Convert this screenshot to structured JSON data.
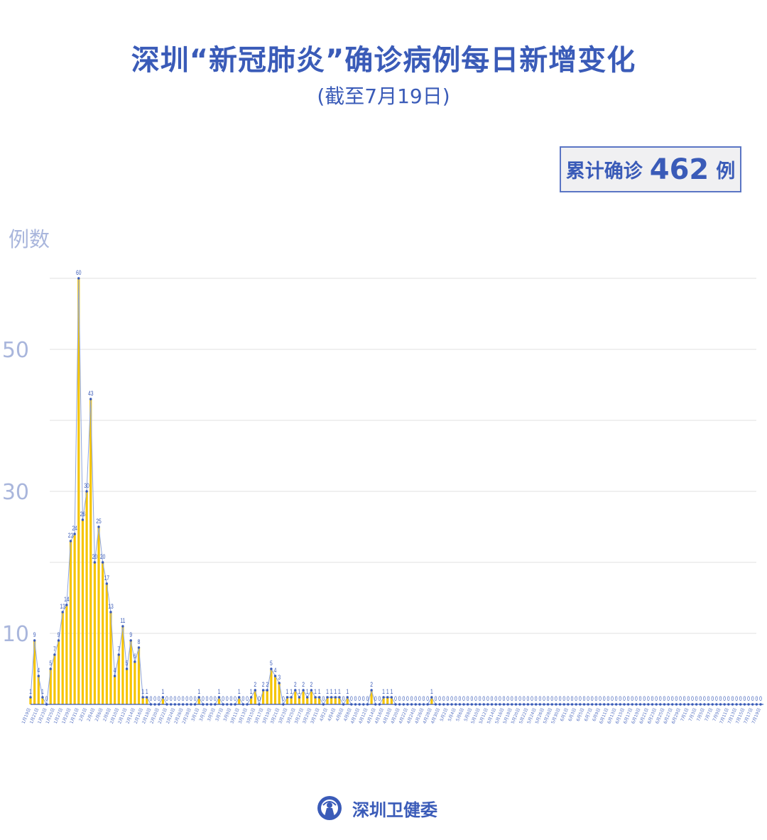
{
  "header": {
    "title": "深圳“新冠肺炎”确诊病例每日新增变化",
    "subtitle": "(截至7月19日)"
  },
  "summary": {
    "label": "累计确诊",
    "value": "462",
    "unit": "例"
  },
  "footer": {
    "org": "深圳卫健委",
    "logo_icon": "health-commission-seal"
  },
  "colors": {
    "bar": "#f5c400",
    "line": "#8fa5dc",
    "point": "#3a5bb8",
    "text": "#3a5bb8",
    "axis_text": "#a9b6dc",
    "grid": "#e2e2e2"
  },
  "chart_data": {
    "type": "bar+line",
    "ylabel": "例数",
    "ylim": [
      0,
      60
    ],
    "yticks_labeled": [
      10,
      30,
      50
    ],
    "grid": true,
    "data_labels": true,
    "categories": [
      "1月19日",
      "1月20日",
      "1月21日",
      "1月22日",
      "1月23日",
      "1月24日",
      "1月25日",
      "1月26日",
      "1月27日",
      "1月28日",
      "1月29日",
      "1月30日",
      "1月31日",
      "2月1日",
      "2月2日",
      "2月3日",
      "2月4日",
      "2月5日",
      "2月6日",
      "2月7日",
      "2月8日",
      "2月9日",
      "2月10日",
      "2月11日",
      "2月12日",
      "2月13日",
      "2月14日",
      "2月15日",
      "2月16日",
      "2月17日",
      "2月18日",
      "2月19日",
      "2月20日",
      "2月21日",
      "2月22日",
      "2月23日",
      "2月24日",
      "2月25日",
      "2月26日",
      "2月27日",
      "2月28日",
      "2月29日",
      "3月1日",
      "3月2日",
      "3月3日",
      "3月4日",
      "3月5日",
      "3月6日",
      "3月7日",
      "3月8日",
      "3月9日",
      "3月10日",
      "3月11日",
      "3月12日",
      "3月13日",
      "3月14日",
      "3月15日",
      "3月16日",
      "3月17日",
      "3月18日",
      "3月19日",
      "3月20日",
      "3月21日",
      "3月22日",
      "3月23日",
      "3月24日",
      "3月25日",
      "3月26日",
      "3月27日",
      "3月28日",
      "3月29日",
      "3月30日",
      "3月31日",
      "4月1日",
      "4月2日",
      "4月3日",
      "4月4日",
      "4月5日",
      "4月6日",
      "4月7日",
      "4月8日",
      "4月9日",
      "4月10日",
      "4月11日",
      "4月12日",
      "4月13日",
      "4月14日",
      "4月15日",
      "4月16日",
      "4月17日",
      "4月18日",
      "4月19日",
      "4月20日",
      "4月21日",
      "4月22日",
      "4月23日",
      "4月24日",
      "4月25日",
      "4月26日",
      "4月27日",
      "4月28日",
      "4月29日",
      "4月30日",
      "5月1日",
      "5月2日",
      "5月3日",
      "5月4日",
      "5月5日",
      "5月6日",
      "5月7日",
      "5月8日",
      "5月9日",
      "5月10日",
      "5月11日",
      "5月12日",
      "5月13日",
      "5月14日",
      "5月15日",
      "5月16日",
      "5月17日",
      "5月18日",
      "5月19日",
      "5月20日",
      "5月21日",
      "5月22日",
      "5月23日",
      "5月24日",
      "5月25日",
      "5月26日",
      "5月27日",
      "5月28日",
      "5月29日",
      "5月30日",
      "5月31日",
      "6月1日",
      "6月2日",
      "6月3日",
      "6月4日",
      "6月5日",
      "6月6日",
      "6月7日",
      "6月8日",
      "6月9日",
      "6月10日",
      "6月11日",
      "6月12日",
      "6月13日",
      "6月14日",
      "6月15日",
      "6月16日",
      "6月17日",
      "6月18日",
      "6月19日",
      "6月20日",
      "6月21日",
      "6月22日",
      "6月23日",
      "6月24日",
      "6月25日",
      "6月26日",
      "6月27日",
      "6月28日",
      "6月29日",
      "6月30日",
      "7月1日",
      "7月2日",
      "7月3日",
      "7月4日",
      "7月5日",
      "7月6日",
      "7月7日",
      "7月8日",
      "7月9日",
      "7月10日",
      "7月11日",
      "7月12日",
      "7月13日",
      "7月14日",
      "7月15日",
      "7月16日",
      "7月17日",
      "7月18日",
      "7月19日"
    ],
    "values": [
      1,
      9,
      4,
      1,
      0,
      5,
      7,
      9,
      13,
      14,
      23,
      24,
      60,
      26,
      30,
      43,
      20,
      25,
      20,
      17,
      13,
      4,
      7,
      11,
      5,
      9,
      6,
      8,
      1,
      1,
      0,
      0,
      0,
      1,
      0,
      0,
      0,
      0,
      0,
      0,
      0,
      0,
      1,
      0,
      0,
      0,
      0,
      1,
      0,
      0,
      0,
      0,
      1,
      0,
      0,
      1,
      2,
      0,
      2,
      2,
      5,
      4,
      3,
      0,
      1,
      1,
      2,
      1,
      2,
      1,
      2,
      1,
      1,
      0,
      1,
      1,
      1,
      1,
      0,
      1,
      0,
      0,
      0,
      0,
      0,
      2,
      0,
      0,
      1,
      1,
      1,
      0,
      0,
      0,
      0,
      0,
      0,
      0,
      0,
      0,
      1,
      0,
      0,
      0,
      0,
      0,
      0,
      0,
      0,
      0,
      0,
      0,
      0,
      0,
      0,
      0,
      0,
      0,
      0,
      0,
      0,
      0,
      0,
      0,
      0,
      0,
      0,
      0,
      0,
      0,
      0,
      0,
      0,
      0,
      0,
      0,
      0,
      0,
      0,
      0,
      0,
      0,
      0,
      0,
      0,
      0,
      0,
      0,
      0,
      0,
      0,
      0,
      0,
      0,
      0,
      0,
      0,
      0,
      0,
      0,
      0,
      0,
      0,
      0,
      0,
      0,
      0,
      0,
      0,
      0,
      0,
      0,
      0,
      0,
      0,
      0,
      0,
      0,
      0,
      0,
      0,
      0,
      0
    ]
  }
}
